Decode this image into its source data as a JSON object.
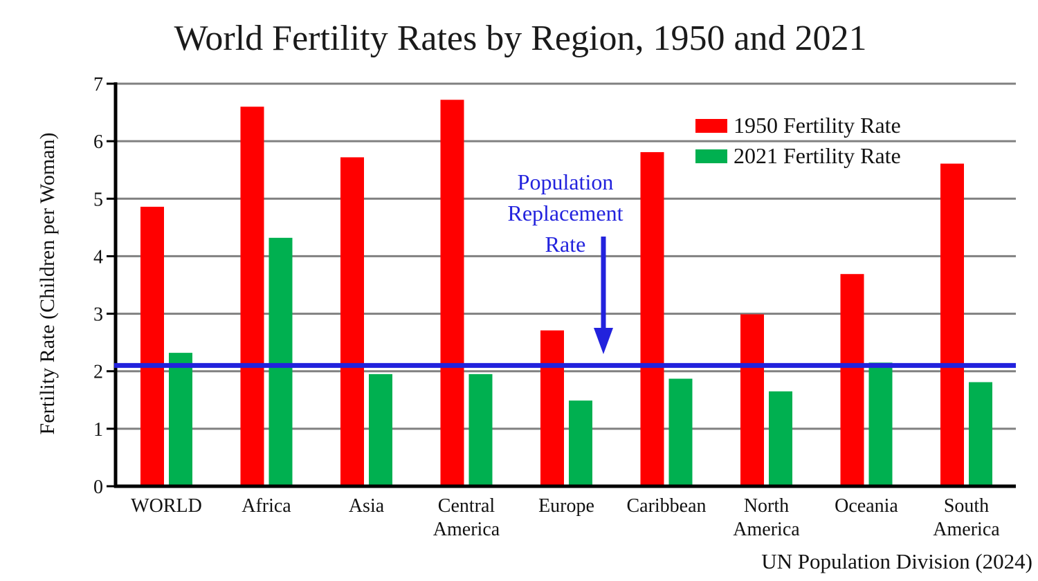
{
  "chart_data": {
    "type": "bar",
    "title": "World Fertility Rates by Region, 1950 and 2021",
    "ylabel": "Fertility Rate (Children per Woman)",
    "xlabel": "",
    "ylim": [
      0,
      7
    ],
    "yticks": [
      "0",
      "1",
      "2",
      "3",
      "4",
      "5",
      "6",
      "7"
    ],
    "grid": true,
    "legend_position": "top-right",
    "categories": [
      [
        "WORLD"
      ],
      [
        "Africa"
      ],
      [
        "Asia"
      ],
      [
        "Central",
        "America"
      ],
      [
        "Europe"
      ],
      [
        "Caribbean"
      ],
      [
        "North",
        "America"
      ],
      [
        "Oceania"
      ],
      [
        "South",
        "America"
      ]
    ],
    "series": [
      {
        "name": "1950 Fertility Rate",
        "color": "#ff0000",
        "values": [
          4.86,
          6.6,
          5.72,
          6.72,
          2.71,
          5.81,
          2.99,
          3.69,
          5.61
        ]
      },
      {
        "name": "2021 Fertility Rate",
        "color": "#00b050",
        "values": [
          2.32,
          4.32,
          1.95,
          1.95,
          1.49,
          1.87,
          1.65,
          2.15,
          1.81
        ]
      }
    ],
    "reference_line": {
      "value": 2.1,
      "color": "#2222dd",
      "label_lines": [
        "Population",
        "Replacement",
        "Rate"
      ]
    },
    "source": "UN Population Division (2024)"
  }
}
